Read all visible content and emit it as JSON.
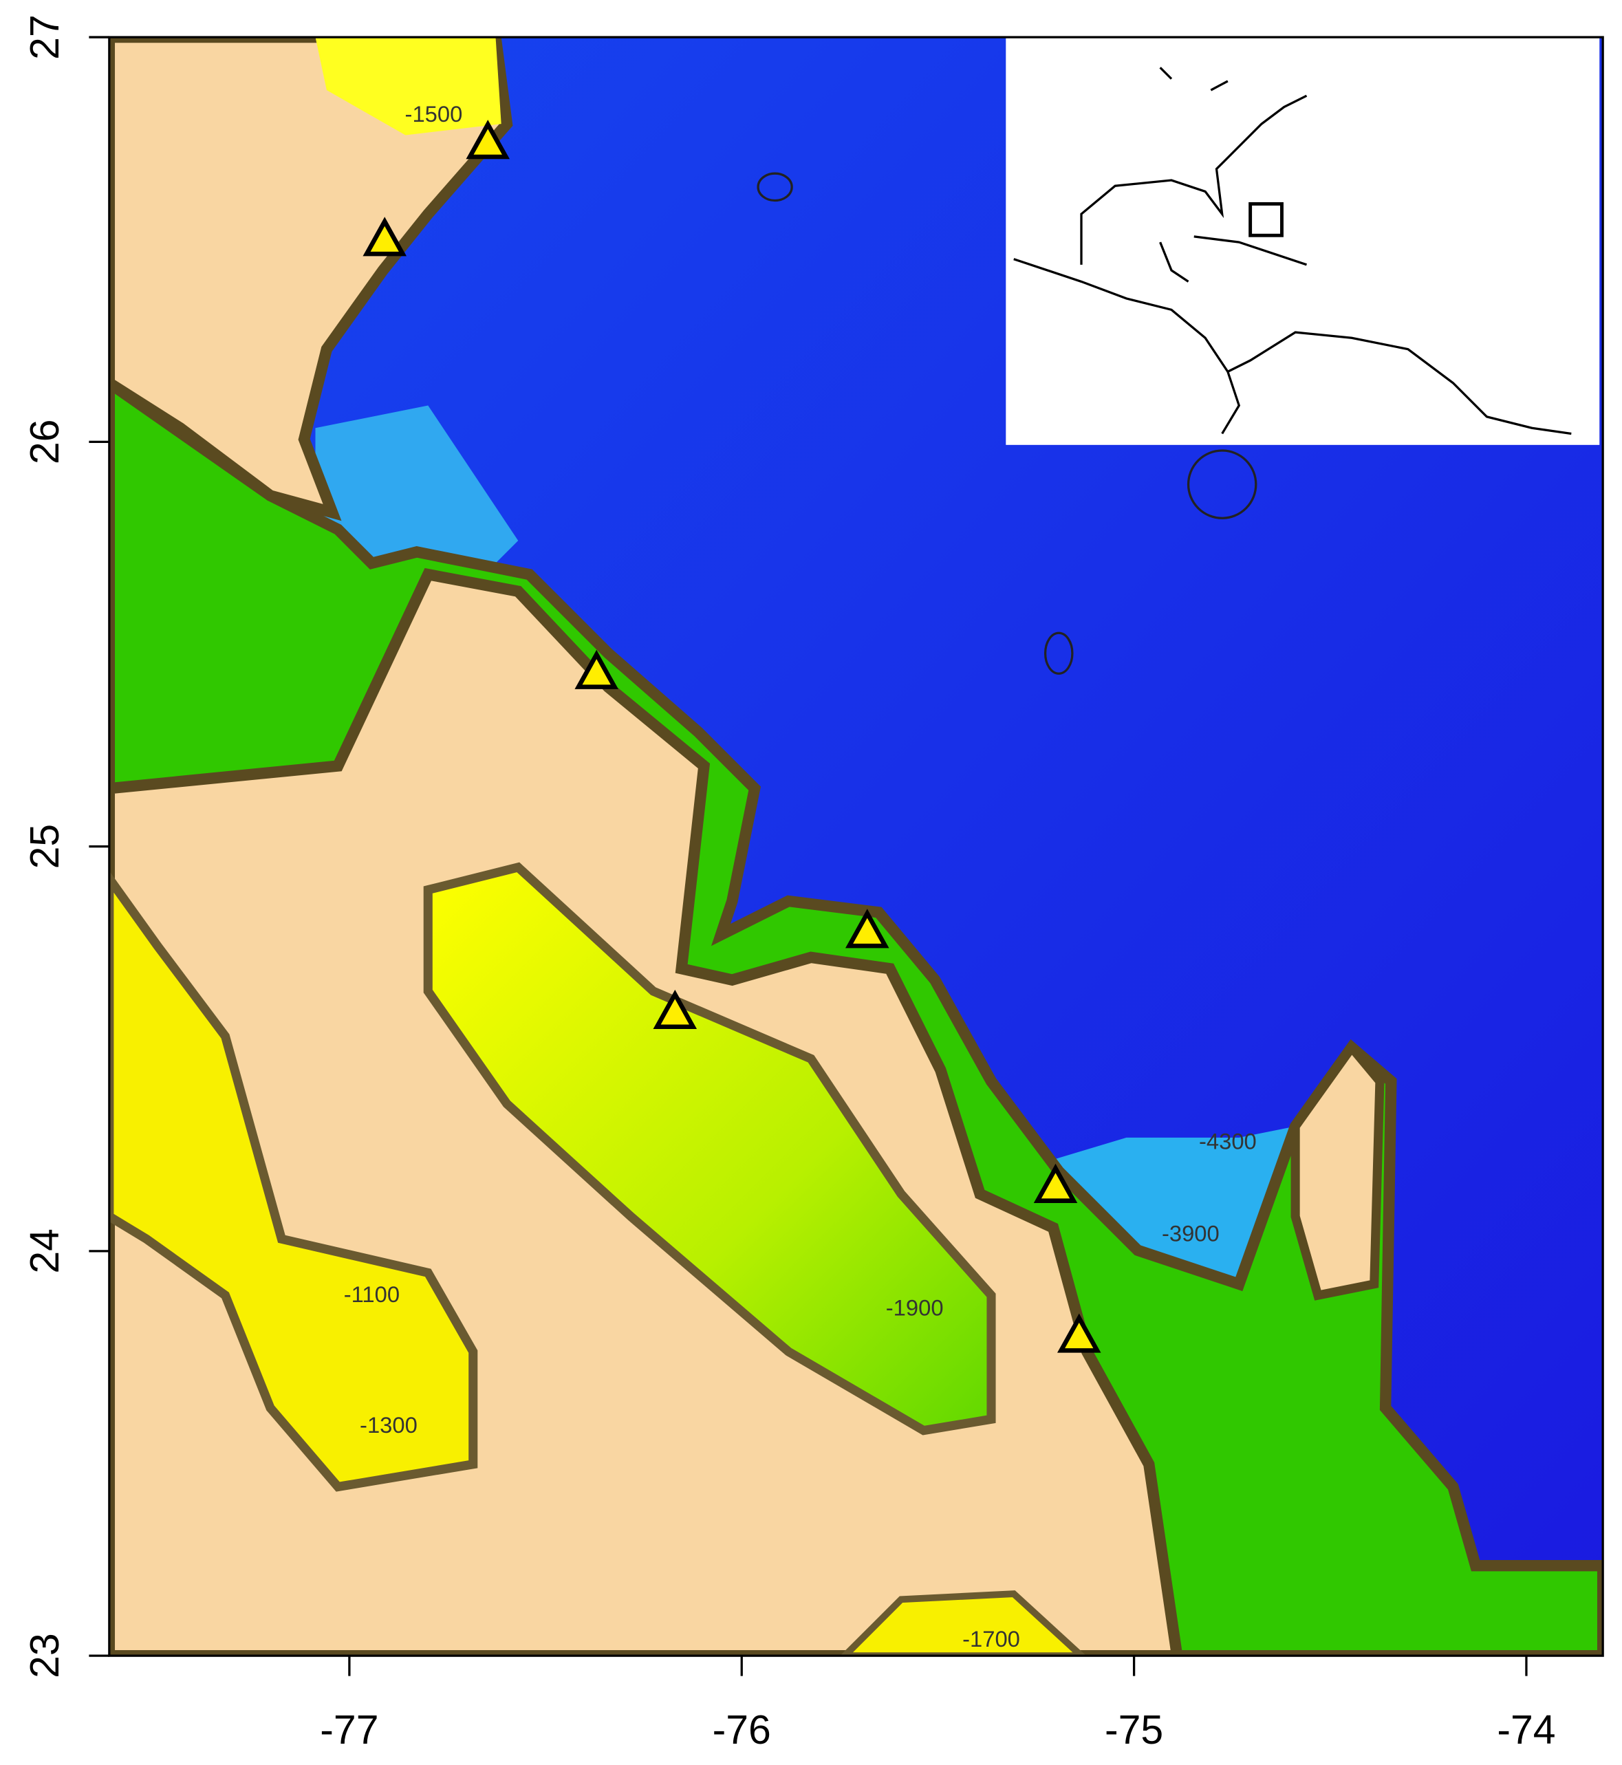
{
  "chart_data": {
    "type": "scatter",
    "xlim": [
      -77.612,
      -73.805
    ],
    "ylim": [
      23,
      27
    ],
    "xticks": [
      -77,
      -76,
      -75,
      -74
    ],
    "yticks": [
      23,
      24,
      25,
      26,
      27
    ],
    "x": [
      -76.647,
      -76.91,
      -76.37,
      -76.17,
      -75.68,
      -75.2,
      -75.14
    ],
    "values": [
      26.74,
      26.5,
      25.43,
      24.59,
      24.79,
      24.16,
      23.79
    ],
    "color": "#ffee00",
    "marker": "triangle",
    "annotations": [
      "-1500",
      "-4300",
      "-3900",
      "-1900",
      "-1100",
      "-1300",
      "-1700"
    ]
  }
}
